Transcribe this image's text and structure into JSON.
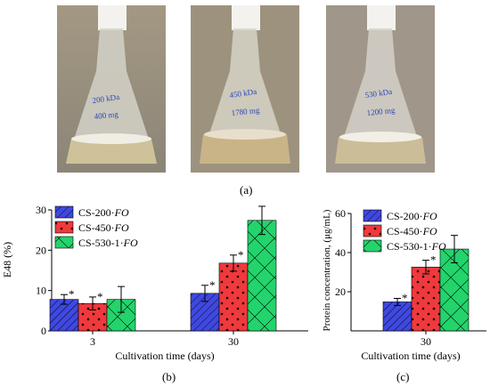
{
  "photos": [
    {
      "label_line1": "200 kDa",
      "label_line2": "400 mg",
      "liquid": "#cfc29a"
    },
    {
      "label_line1": "450 kDa",
      "label_line2": "1780 mg",
      "liquid": "#c9b488"
    },
    {
      "label_line1": "530 kDa",
      "label_line2": "1200 mg",
      "liquid": "#cbbd97"
    }
  ],
  "panel_labels": {
    "a": "(a)",
    "b": "(b)",
    "c": "(c)"
  },
  "colors": {
    "cs200": "#3f48e0",
    "cs450": "#f0393d",
    "cs530": "#22d46b"
  },
  "chart_data": [
    {
      "type": "bar",
      "categories": [
        "3",
        "30"
      ],
      "series": [
        {
          "name": "CS-200·FO",
          "values": [
            7.8,
            9.3
          ],
          "errors": [
            1.2,
            2.0
          ],
          "significant": [
            true,
            true
          ]
        },
        {
          "name": "CS-450·FO",
          "values": [
            6.8,
            16.8
          ],
          "errors": [
            1.6,
            2.0
          ],
          "significant": [
            true,
            true
          ]
        },
        {
          "name": "CS-530-1·FO",
          "values": [
            7.8,
            27.4
          ],
          "errors": [
            3.2,
            3.5
          ],
          "significant": [
            false,
            false
          ]
        }
      ],
      "xlabel": "Cultivation time (days)",
      "ylabel": "E48 (%)",
      "ylim": [
        0,
        30
      ],
      "yticks": [
        0,
        10,
        20,
        30
      ],
      "legend": "top-left"
    },
    {
      "type": "bar",
      "categories": [
        "30"
      ],
      "series": [
        {
          "name": "CS-200·FO",
          "values": [
            14.8
          ],
          "errors": [
            1.8
          ],
          "significant": [
            true
          ]
        },
        {
          "name": "CS-450·FO",
          "values": [
            32.6
          ],
          "errors": [
            3.5
          ],
          "significant": [
            true
          ]
        },
        {
          "name": "CS-530-1·FO",
          "values": [
            41.8
          ],
          "errors": [
            7.0
          ],
          "significant": [
            false
          ]
        }
      ],
      "xlabel": "Cultivation time (days)",
      "ylabel": "Protein concentration, (μg/mL)",
      "ylim": [
        0,
        60
      ],
      "yticks": [
        20,
        40,
        60
      ],
      "legend": "top-left"
    }
  ],
  "legend_entries": [
    {
      "prefix": "CS-200·",
      "suffix": "FO"
    },
    {
      "prefix": "CS-450·",
      "suffix": "FO"
    },
    {
      "prefix": "CS-530-1·",
      "suffix": "FO"
    }
  ]
}
